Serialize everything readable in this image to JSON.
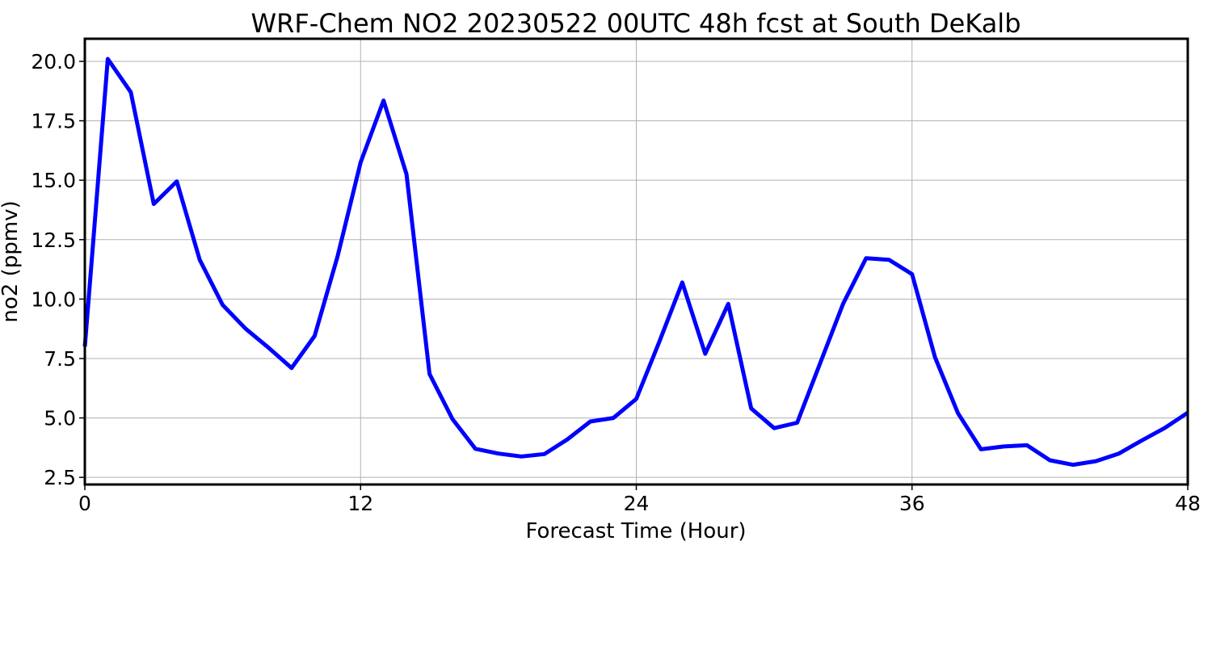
{
  "chart_data": {
    "type": "line",
    "title": "WRF-Chem NO2  20230522 00UTC 48h fcst at South DeKalb",
    "xlabel": "Forecast Time (Hour)",
    "ylabel": "no2  (ppmv)",
    "xlim": [
      0,
      48
    ],
    "ylim": [
      2.2,
      20.95
    ],
    "xticks": [
      0,
      12,
      24,
      36,
      48
    ],
    "xtick_labels": [
      "0",
      "12",
      "24",
      "36",
      "48"
    ],
    "yticks": [
      2.5,
      5.0,
      7.5,
      10.0,
      12.5,
      15.0,
      17.5,
      20.0
    ],
    "ytick_labels": [
      "2.5",
      "5.0",
      "7.5",
      "10.0",
      "12.5",
      "15.0",
      "17.5",
      "20.0"
    ],
    "grid": true,
    "series": [
      {
        "color": "#0000ff",
        "x": [
          0,
          1,
          2,
          3,
          4,
          5,
          6,
          7,
          8,
          9,
          10,
          11,
          12,
          13,
          14,
          15,
          16,
          17,
          18,
          19,
          20,
          21,
          22,
          23,
          24,
          25,
          26,
          27,
          28,
          29,
          30,
          31,
          32,
          33,
          34,
          35,
          36,
          37,
          38,
          39,
          40,
          41,
          42,
          43,
          44,
          45,
          46,
          47,
          48
        ],
        "y": [
          8.0,
          20.1,
          18.7,
          14.0,
          14.95,
          11.65,
          9.75,
          8.75,
          7.95,
          7.1,
          8.45,
          11.8,
          15.75,
          18.35,
          15.25,
          6.85,
          4.95,
          3.7,
          3.5,
          3.38,
          3.48,
          4.1,
          4.85,
          5.0,
          5.8,
          8.2,
          10.7,
          7.7,
          9.8,
          5.4,
          4.57,
          4.8,
          7.3,
          9.8,
          11.72,
          11.65,
          11.05,
          7.55,
          5.2,
          3.68,
          3.8,
          3.85,
          3.22,
          3.03,
          3.18,
          3.5,
          4.05,
          4.58,
          5.22
        ]
      }
    ]
  }
}
